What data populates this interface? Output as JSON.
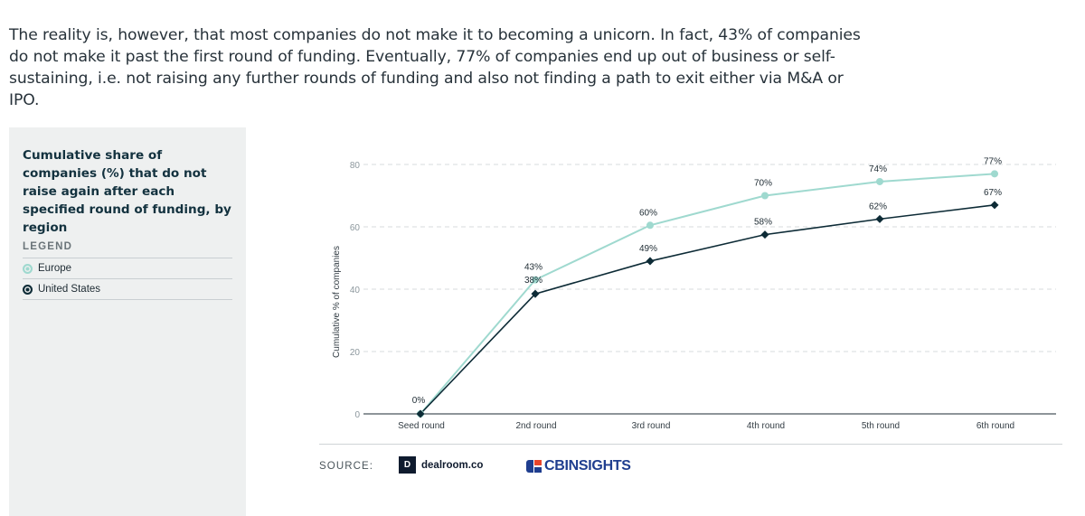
{
  "intro_text": "The reality is, however, that most companies do not make it to becoming a unicorn. In fact, 43% of companies do not make it past the first round of funding. Eventually, 77% of companies end up out of business or self-sustaining, i.e. not raising any further rounds of funding and also not finding a path to exit either via M&A or IPO.",
  "panel": {
    "title": "Cumulative share of companies (%) that do not raise again after each specified round of funding, by region",
    "legend_heading": "LEGEND",
    "legend": [
      {
        "label": "Europe",
        "color": "#9fd9cf"
      },
      {
        "label": "United States",
        "color": "#0d2b36"
      }
    ]
  },
  "chart_data": {
    "type": "line",
    "title": "",
    "xlabel": "",
    "ylabel": "Cumulative % of companies",
    "categories": [
      "Seed round",
      "2nd round",
      "3rd round",
      "4th round",
      "5th round",
      "6th round"
    ],
    "ylim": [
      0,
      80
    ],
    "yticks": [
      0,
      20,
      40,
      60,
      80
    ],
    "grid": true,
    "series": [
      {
        "name": "Europe",
        "color": "#9fd9cf",
        "values": [
          0,
          43,
          60.5,
          70,
          74.5,
          77
        ],
        "labels": [
          "0%",
          "43%",
          "60%",
          "70%",
          "74%",
          "77%"
        ]
      },
      {
        "name": "United States",
        "color": "#0d2b36",
        "values": [
          0,
          38.5,
          49,
          57.5,
          62.5,
          67
        ],
        "labels": [
          "",
          "38%",
          "49%",
          "58%",
          "62%",
          "67%"
        ]
      }
    ]
  },
  "source": {
    "label": "SOURCE:",
    "logos": [
      {
        "text": "dealroom.co",
        "mark": "D",
        "icon": "dealroom-logo-icon"
      },
      {
        "text": "CBINSIGHTS",
        "icon": "cbinsights-logo-icon"
      }
    ]
  }
}
